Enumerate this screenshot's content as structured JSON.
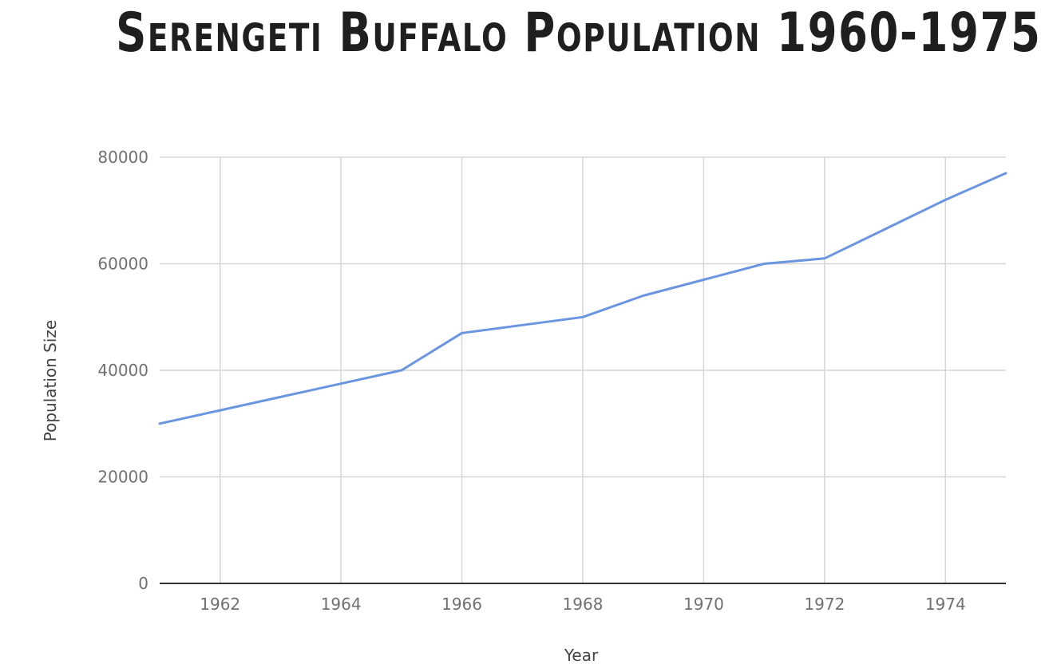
{
  "chart_data": {
    "type": "line",
    "title": "Serengeti Buffalo Population 1960-1975",
    "xlabel": "Year",
    "ylabel": "Population Size",
    "x": [
      1961,
      1962,
      1963,
      1964,
      1965,
      1966,
      1967,
      1968,
      1969,
      1970,
      1971,
      1972,
      1973,
      1974,
      1975
    ],
    "series": [
      {
        "values": [
          30000,
          32500,
          35000,
          37500,
          40000,
          47000,
          48500,
          50000,
          54000,
          57000,
          60000,
          61000,
          66500,
          72000,
          77000
        ]
      }
    ],
    "xlim": [
      1961,
      1975
    ],
    "ylim": [
      0,
      80000
    ],
    "x_ticks": [
      "1962",
      "1964",
      "1966",
      "1968",
      "1970",
      "1972",
      "1974"
    ],
    "y_ticks": [
      "0",
      "20000",
      "40000",
      "60000",
      "80000"
    ],
    "grid": true,
    "colors": {
      "line": "#6a95e0",
      "grid": "#d6d6d6",
      "baseline": "#333333"
    }
  }
}
